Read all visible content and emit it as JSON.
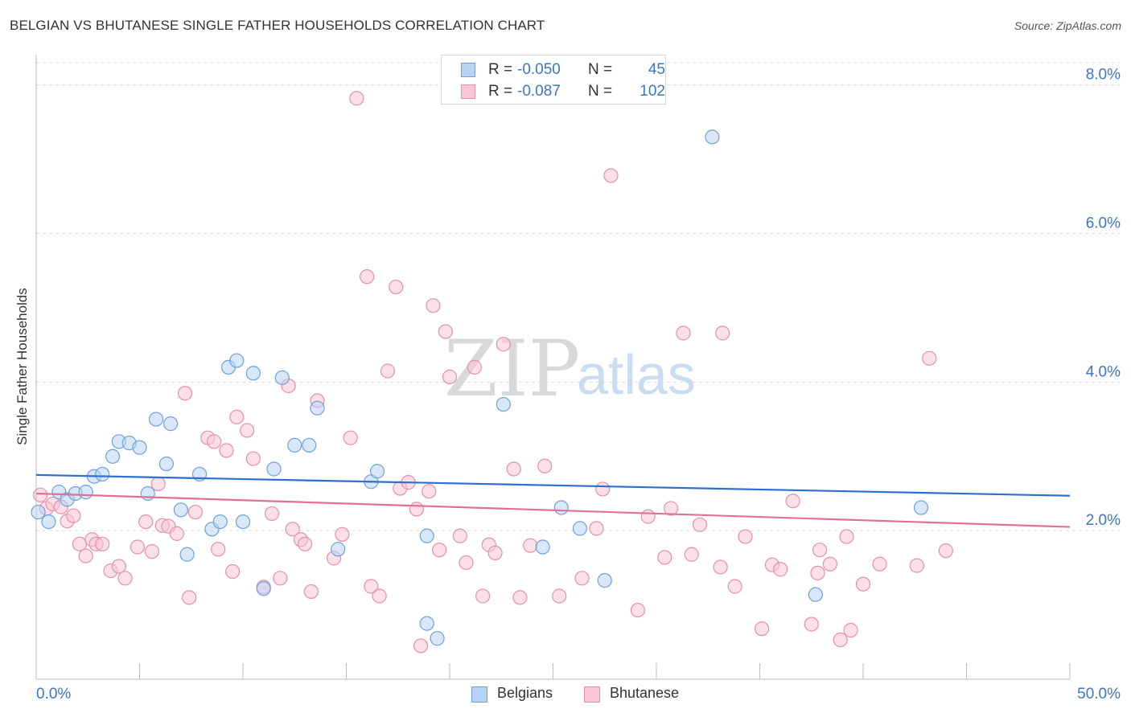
{
  "title": "BELGIAN VS BHUTANESE SINGLE FATHER HOUSEHOLDS CORRELATION CHART",
  "source": "Source: ZipAtlas.com",
  "watermark": {
    "part1": "ZIP",
    "part2": "atlas"
  },
  "legend": {
    "rows": [
      {
        "r_label": "R =",
        "r_value": "-0.050",
        "n_label": "N =",
        "n_value": "45"
      },
      {
        "r_label": "R =",
        "r_value": "-0.087",
        "n_label": "N =",
        "n_value": "102"
      }
    ]
  },
  "bottom_legend": {
    "series1": "Belgians",
    "series2": "Bhutanese"
  },
  "colors": {
    "blue_fill": "#b9d3f2",
    "blue_stroke": "#6fa0dc",
    "blue_line": "#2f6fcf",
    "pink_fill": "#f8c6d6",
    "pink_stroke": "#e58fab",
    "pink_line": "#e0709a",
    "axis_label": "#3a76c9",
    "grid": "#dcdcdc"
  },
  "chart_data": {
    "type": "scatter",
    "title": "BELGIAN VS BHUTANESE SINGLE FATHER HOUSEHOLDS CORRELATION CHART",
    "xlabel": "",
    "ylabel": "Single Father Households",
    "xlim": [
      0,
      50
    ],
    "ylim": [
      0,
      8.3
    ],
    "x_tick_labels": [
      "0.0%",
      "50.0%"
    ],
    "y_ticks": [
      2,
      4,
      6,
      8
    ],
    "y_tick_labels": [
      "2.0%",
      "4.0%",
      "6.0%",
      "8.0%"
    ],
    "grid": true,
    "legend_position": "top-center",
    "series": [
      {
        "name": "Belgians",
        "r": -0.05,
        "n": 45,
        "trend": [
          [
            0,
            2.75
          ],
          [
            50,
            2.47
          ]
        ],
        "points": [
          [
            0.1,
            2.25
          ],
          [
            0.6,
            2.12
          ],
          [
            1.1,
            2.52
          ],
          [
            1.5,
            2.42
          ],
          [
            1.9,
            2.5
          ],
          [
            2.4,
            2.52
          ],
          [
            2.8,
            2.73
          ],
          [
            3.2,
            2.76
          ],
          [
            3.7,
            3.0
          ],
          [
            4.0,
            3.2
          ],
          [
            4.5,
            3.18
          ],
          [
            5.0,
            3.12
          ],
          [
            5.4,
            2.5
          ],
          [
            5.8,
            3.5
          ],
          [
            6.3,
            2.9
          ],
          [
            6.5,
            3.44
          ],
          [
            7.0,
            2.28
          ],
          [
            7.3,
            1.68
          ],
          [
            7.9,
            2.76
          ],
          [
            8.5,
            2.02
          ],
          [
            8.9,
            2.12
          ],
          [
            9.3,
            4.2
          ],
          [
            9.7,
            4.29
          ],
          [
            10.0,
            2.12
          ],
          [
            10.5,
            4.12
          ],
          [
            11.0,
            1.22
          ],
          [
            11.5,
            2.83
          ],
          [
            11.9,
            4.06
          ],
          [
            12.5,
            3.15
          ],
          [
            13.2,
            3.15
          ],
          [
            13.6,
            3.65
          ],
          [
            14.6,
            1.75
          ],
          [
            16.2,
            2.66
          ],
          [
            16.5,
            2.8
          ],
          [
            18.9,
            1.93
          ],
          [
            18.9,
            0.75
          ],
          [
            19.4,
            0.55
          ],
          [
            22.6,
            3.7
          ],
          [
            24.5,
            1.78
          ],
          [
            25.4,
            2.31
          ],
          [
            26.3,
            2.03
          ],
          [
            27.5,
            1.33
          ],
          [
            32.7,
            7.3
          ],
          [
            37.7,
            1.14
          ],
          [
            42.8,
            2.31
          ]
        ]
      },
      {
        "name": "Bhutanese",
        "r": -0.087,
        "n": 102,
        "trend": [
          [
            0,
            2.5
          ],
          [
            50,
            2.05
          ]
        ],
        "points": [
          [
            0.2,
            2.48
          ],
          [
            0.5,
            2.3
          ],
          [
            0.8,
            2.36
          ],
          [
            1.2,
            2.32
          ],
          [
            1.5,
            2.13
          ],
          [
            1.8,
            2.2
          ],
          [
            2.1,
            1.82
          ],
          [
            2.4,
            1.66
          ],
          [
            2.7,
            1.88
          ],
          [
            2.9,
            1.82
          ],
          [
            3.2,
            1.82
          ],
          [
            3.6,
            1.46
          ],
          [
            4.0,
            1.52
          ],
          [
            4.3,
            1.36
          ],
          [
            4.9,
            1.78
          ],
          [
            5.3,
            2.12
          ],
          [
            5.6,
            1.72
          ],
          [
            5.9,
            2.63
          ],
          [
            6.1,
            2.07
          ],
          [
            6.4,
            2.06
          ],
          [
            6.8,
            1.96
          ],
          [
            7.2,
            3.85
          ],
          [
            7.4,
            1.1
          ],
          [
            7.7,
            2.25
          ],
          [
            8.3,
            3.25
          ],
          [
            8.6,
            3.2
          ],
          [
            8.8,
            1.75
          ],
          [
            9.2,
            3.08
          ],
          [
            9.5,
            1.45
          ],
          [
            9.7,
            3.53
          ],
          [
            10.2,
            3.35
          ],
          [
            10.5,
            2.97
          ],
          [
            11.0,
            1.24
          ],
          [
            11.4,
            2.23
          ],
          [
            11.8,
            1.36
          ],
          [
            12.2,
            3.95
          ],
          [
            12.4,
            2.02
          ],
          [
            12.8,
            1.88
          ],
          [
            13.0,
            1.82
          ],
          [
            13.3,
            1.18
          ],
          [
            13.6,
            3.75
          ],
          [
            14.4,
            1.63
          ],
          [
            14.8,
            1.95
          ],
          [
            15.2,
            3.25
          ],
          [
            15.5,
            7.82
          ],
          [
            16.0,
            5.42
          ],
          [
            16.2,
            1.25
          ],
          [
            16.6,
            1.12
          ],
          [
            17.0,
            4.15
          ],
          [
            17.4,
            5.28
          ],
          [
            17.6,
            2.57
          ],
          [
            18.0,
            2.65
          ],
          [
            18.4,
            2.29
          ],
          [
            18.6,
            0.45
          ],
          [
            19.0,
            2.53
          ],
          [
            19.2,
            5.03
          ],
          [
            19.5,
            1.74
          ],
          [
            19.8,
            4.68
          ],
          [
            20.0,
            4.07
          ],
          [
            20.5,
            1.93
          ],
          [
            20.8,
            1.57
          ],
          [
            21.2,
            4.2
          ],
          [
            21.6,
            1.12
          ],
          [
            21.9,
            1.81
          ],
          [
            22.2,
            1.7
          ],
          [
            22.6,
            4.51
          ],
          [
            23.1,
            2.83
          ],
          [
            23.4,
            1.1
          ],
          [
            23.9,
            1.8
          ],
          [
            24.6,
            2.87
          ],
          [
            25.3,
            1.12
          ],
          [
            26.4,
            1.36
          ],
          [
            27.1,
            2.03
          ],
          [
            27.4,
            2.56
          ],
          [
            27.8,
            6.78
          ],
          [
            29.1,
            0.93
          ],
          [
            29.6,
            2.19
          ],
          [
            30.4,
            1.64
          ],
          [
            30.7,
            2.3
          ],
          [
            31.3,
            4.66
          ],
          [
            31.7,
            1.68
          ],
          [
            32.1,
            2.08
          ],
          [
            33.1,
            1.51
          ],
          [
            33.2,
            4.66
          ],
          [
            33.8,
            1.25
          ],
          [
            34.3,
            1.92
          ],
          [
            35.1,
            0.68
          ],
          [
            35.6,
            1.54
          ],
          [
            36.0,
            1.48
          ],
          [
            36.6,
            2.4
          ],
          [
            37.5,
            0.74
          ],
          [
            37.8,
            1.43
          ],
          [
            37.9,
            1.74
          ],
          [
            38.4,
            1.55
          ],
          [
            38.9,
            0.53
          ],
          [
            39.2,
            1.92
          ],
          [
            39.4,
            0.66
          ],
          [
            40.0,
            1.28
          ],
          [
            40.8,
            1.55
          ],
          [
            42.6,
            1.53
          ],
          [
            43.2,
            4.32
          ],
          [
            44.0,
            1.73
          ]
        ]
      }
    ]
  }
}
